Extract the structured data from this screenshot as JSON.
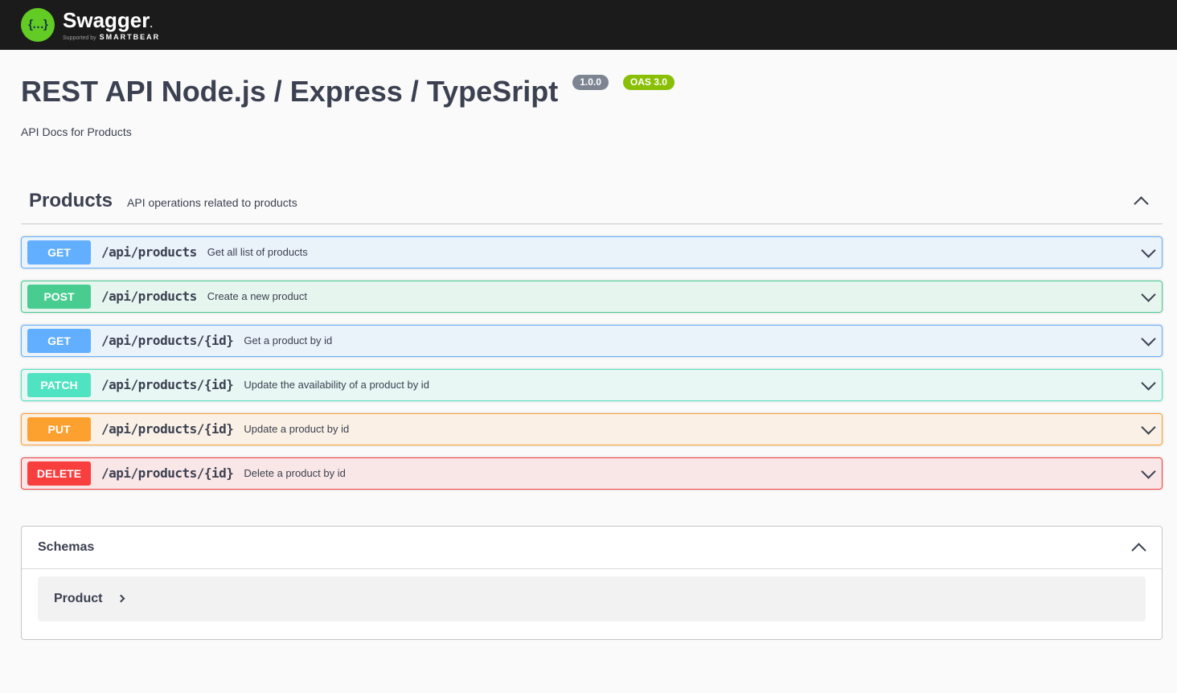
{
  "topbar": {
    "brand": "Swagger",
    "brand_dot": ".",
    "logo_glyph": "{…}",
    "supported_by_prefix": "Supported by",
    "supported_by_name": "SMARTBEAR"
  },
  "info": {
    "title": "REST API Node.js / Express / TypeSript",
    "version_badge": "1.0.0",
    "oas_badge": "OAS 3.0",
    "description": "API Docs for Products"
  },
  "products_section": {
    "title": "Products",
    "description": "API operations related to products"
  },
  "operations": [
    {
      "method": "GET",
      "path": "/api/products",
      "summary": "Get all list of products"
    },
    {
      "method": "POST",
      "path": "/api/products",
      "summary": "Create a new product"
    },
    {
      "method": "GET",
      "path": "/api/products/{id}",
      "summary": "Get a product by id"
    },
    {
      "method": "PATCH",
      "path": "/api/products/{id}",
      "summary": "Update the availability of a product by id"
    },
    {
      "method": "PUT",
      "path": "/api/products/{id}",
      "summary": "Update a product by id"
    },
    {
      "method": "DELETE",
      "path": "/api/products/{id}",
      "summary": "Delete a product by id"
    }
  ],
  "schemas_section": {
    "title": "Schemas",
    "models": [
      {
        "name": "Product"
      }
    ]
  },
  "colors": {
    "topbar_bg": "#1b1b1b",
    "logo_green": "#62cb24",
    "version_badge_bg": "#7d8492",
    "oas_badge_bg": "#89bf04",
    "text": "#3b4151",
    "get": "#61affe",
    "post": "#49cc90",
    "patch": "#50e3c2",
    "put": "#fca130",
    "delete": "#f93e3e",
    "page_bg": "#fafafa"
  }
}
